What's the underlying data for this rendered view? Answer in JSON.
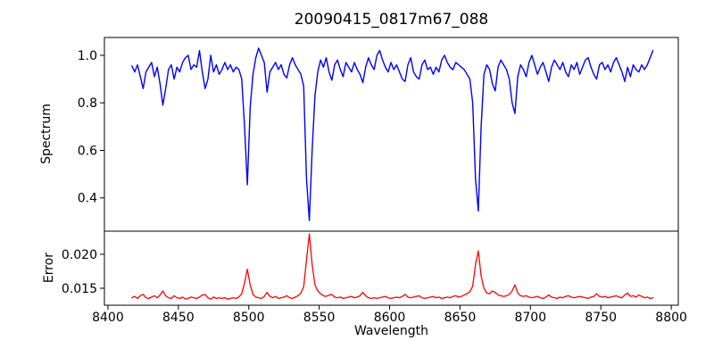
{
  "chart_data": {
    "type": "line",
    "title": "20090415_0817m67_088",
    "xlabel": "Wavelength",
    "xlim": [
      8397.5,
      8805.0
    ],
    "xticks": [
      8400,
      8450,
      8500,
      8550,
      8600,
      8650,
      8700,
      8750,
      8800
    ],
    "grid": false,
    "legend": "none",
    "background": "#ffffff",
    "panels": [
      {
        "name": "spectrum",
        "ylabel": "Spectrum",
        "color": "#0000ff",
        "ylim": [
          0.26,
          1.075
        ],
        "yticks": [
          0.4,
          0.6,
          0.8,
          1.0
        ],
        "ytick_decimals": 1,
        "x_start": 8417,
        "x_step": 2,
        "values": [
          0.955,
          0.93,
          0.96,
          0.91,
          0.86,
          0.93,
          0.95,
          0.97,
          0.91,
          0.95,
          0.88,
          0.79,
          0.86,
          0.94,
          0.96,
          0.9,
          0.95,
          0.93,
          0.97,
          0.99,
          1.0,
          0.94,
          0.96,
          0.95,
          1.02,
          0.93,
          0.86,
          0.9,
          1.0,
          0.93,
          0.96,
          0.92,
          0.94,
          0.97,
          0.94,
          0.96,
          0.93,
          0.95,
          0.94,
          0.9,
          0.7,
          0.455,
          0.78,
          0.92,
          0.99,
          1.03,
          1.0,
          0.97,
          0.845,
          0.93,
          0.95,
          0.97,
          0.94,
          0.96,
          0.92,
          0.905,
          0.96,
          0.99,
          0.96,
          0.94,
          0.92,
          0.87,
          0.48,
          0.305,
          0.6,
          0.83,
          0.93,
          0.98,
          0.95,
          0.99,
          0.93,
          0.895,
          0.96,
          0.98,
          0.94,
          0.91,
          0.97,
          0.95,
          0.93,
          0.97,
          0.94,
          0.92,
          0.885,
          0.95,
          0.99,
          0.96,
          0.94,
          1.0,
          1.02,
          0.98,
          0.95,
          0.93,
          0.97,
          0.94,
          0.96,
          0.93,
          0.9,
          0.89,
          0.96,
          0.99,
          0.93,
          0.91,
          0.9,
          0.96,
          0.98,
          0.94,
          0.95,
          0.92,
          0.95,
          0.93,
          0.98,
          1.0,
          0.97,
          0.95,
          0.94,
          0.97,
          0.96,
          0.95,
          0.94,
          0.92,
          0.9,
          0.8,
          0.48,
          0.345,
          0.7,
          0.92,
          0.96,
          0.94,
          0.88,
          0.85,
          0.95,
          0.98,
          0.96,
          0.94,
          0.9,
          0.8,
          0.755,
          0.91,
          0.96,
          0.94,
          0.91,
          0.97,
          1.0,
          0.96,
          0.92,
          0.95,
          0.97,
          0.93,
          0.89,
          0.95,
          0.98,
          0.96,
          0.94,
          0.97,
          0.93,
          0.91,
          0.96,
          0.94,
          0.97,
          0.92,
          0.95,
          0.98,
          0.99,
          0.95,
          0.92,
          0.9,
          0.96,
          0.97,
          0.94,
          0.96,
          0.93,
          0.97,
          0.99,
          0.96,
          0.93,
          0.89,
          0.95,
          0.91,
          0.96,
          0.94,
          0.93,
          0.96,
          0.94,
          0.96,
          0.99,
          1.02
        ]
      },
      {
        "name": "error",
        "ylabel": "Error",
        "color": "#ff0000",
        "ylim": [
          0.0125,
          0.0234
        ],
        "yticks": [
          0.015,
          0.02
        ],
        "ytick_decimals": 3,
        "x_start": 8417,
        "x_step": 2,
        "values": [
          0.0136,
          0.0138,
          0.0135,
          0.0139,
          0.0141,
          0.0136,
          0.0135,
          0.0137,
          0.0139,
          0.0136,
          0.014,
          0.0146,
          0.0139,
          0.0136,
          0.0135,
          0.0139,
          0.0136,
          0.0135,
          0.0137,
          0.0134,
          0.0135,
          0.0137,
          0.0136,
          0.0135,
          0.0137,
          0.014,
          0.0141,
          0.0136,
          0.0134,
          0.0137,
          0.0135,
          0.0136,
          0.0135,
          0.0136,
          0.0134,
          0.0135,
          0.0136,
          0.0135,
          0.0137,
          0.0142,
          0.0158,
          0.0178,
          0.0155,
          0.0141,
          0.0137,
          0.0136,
          0.0135,
          0.0138,
          0.0144,
          0.0138,
          0.0136,
          0.0138,
          0.0135,
          0.0136,
          0.0137,
          0.0139,
          0.0136,
          0.0135,
          0.0137,
          0.0139,
          0.0143,
          0.0152,
          0.0192,
          0.023,
          0.0185,
          0.0155,
          0.0146,
          0.0142,
          0.0139,
          0.0138,
          0.014,
          0.0141,
          0.0137,
          0.0136,
          0.0137,
          0.0135,
          0.0136,
          0.0137,
          0.0138,
          0.0136,
          0.0137,
          0.0139,
          0.0144,
          0.0139,
          0.0136,
          0.0135,
          0.0136,
          0.0135,
          0.0136,
          0.0137,
          0.0138,
          0.0136,
          0.0135,
          0.0136,
          0.0137,
          0.0136,
          0.0138,
          0.0141,
          0.0137,
          0.0136,
          0.0137,
          0.0138,
          0.0139,
          0.0136,
          0.0135,
          0.0136,
          0.0137,
          0.0138,
          0.0136,
          0.0137,
          0.0135,
          0.0136,
          0.0137,
          0.0136,
          0.0138,
          0.0139,
          0.0137,
          0.0138,
          0.014,
          0.0142,
          0.0145,
          0.0153,
          0.0185,
          0.0205,
          0.0168,
          0.015,
          0.0143,
          0.0142,
          0.0146,
          0.0144,
          0.014,
          0.0139,
          0.0138,
          0.0139,
          0.0141,
          0.0146,
          0.0155,
          0.0143,
          0.0139,
          0.0138,
          0.0139,
          0.0137,
          0.0136,
          0.0137,
          0.0138,
          0.0136,
          0.0135,
          0.0137,
          0.014,
          0.0137,
          0.0136,
          0.0135,
          0.0137,
          0.0136,
          0.0138,
          0.0139,
          0.0137,
          0.0136,
          0.0137,
          0.0138,
          0.0137,
          0.0136,
          0.0135,
          0.0137,
          0.0138,
          0.0142,
          0.0138,
          0.0137,
          0.0138,
          0.0136,
          0.0137,
          0.0138,
          0.0139,
          0.0137,
          0.0136,
          0.014,
          0.0143,
          0.0138,
          0.0139,
          0.0137,
          0.014,
          0.0138,
          0.0136,
          0.0137,
          0.0135,
          0.0136
        ]
      }
    ]
  }
}
